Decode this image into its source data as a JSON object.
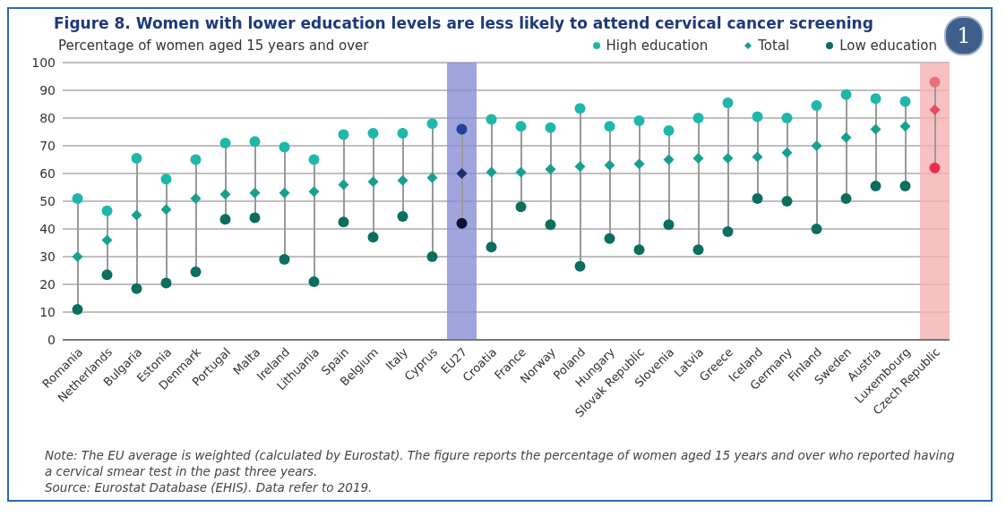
{
  "chart_data": {
    "type": "scatter",
    "title": "Figure 8. Women with lower education levels are less likely to attend cervical cancer screening",
    "ylabel": "Percentage of women aged 15 years and over",
    "categories": [
      "Romania",
      "Netherlands",
      "Bulgaria",
      "Estonia",
      "Denmark",
      "Portugal",
      "Malta",
      "Ireland",
      "Lithuania",
      "Spain",
      "Belgium",
      "Italy",
      "Cyprus",
      "EU27",
      "Croatia",
      "France",
      "Norway",
      "Poland",
      "Hungary",
      "Slovak Republic",
      "Slovenia",
      "Latvia",
      "Greece",
      "Iceland",
      "Germany",
      "Finland",
      "Sweden",
      "Austria",
      "Luxembourg",
      "Czech Republic"
    ],
    "series": [
      {
        "name": "High education",
        "color": "#1db8aa",
        "marker": "circle",
        "values": [
          51,
          46.5,
          65.5,
          58,
          65,
          71,
          71.5,
          69.5,
          65,
          74,
          74.5,
          74.5,
          78,
          76,
          79.5,
          77,
          76.5,
          83.5,
          77,
          79,
          75.5,
          80,
          85.5,
          80.5,
          80,
          84.5,
          88.5,
          87,
          86,
          93
        ],
        "colors": [
          "#1db8aa",
          "#1db8aa",
          "#1db8aa",
          "#1db8aa",
          "#1db8aa",
          "#1db8aa",
          "#1db8aa",
          "#1db8aa",
          "#1db8aa",
          "#1db8aa",
          "#1db8aa",
          "#1db8aa",
          "#1db8aa",
          "#23409a",
          "#1db8aa",
          "#1db8aa",
          "#1db8aa",
          "#1db8aa",
          "#1db8aa",
          "#1db8aa",
          "#1db8aa",
          "#1db8aa",
          "#1db8aa",
          "#1db8aa",
          "#1db8aa",
          "#1db8aa",
          "#1db8aa",
          "#1db8aa",
          "#1db8aa",
          "#e8707a"
        ]
      },
      {
        "name": "Total",
        "color": "#17a08f",
        "marker": "diamond",
        "values": [
          30,
          36,
          45,
          47,
          51,
          52.5,
          53,
          53,
          53.5,
          56,
          57,
          57.5,
          58.5,
          60,
          60.5,
          60.5,
          61.5,
          62.5,
          63,
          63.5,
          65,
          65.5,
          65.5,
          66,
          67.5,
          70,
          73,
          76,
          77,
          83
        ],
        "colors": [
          "#17a08f",
          "#17a08f",
          "#17a08f",
          "#17a08f",
          "#17a08f",
          "#17a08f",
          "#17a08f",
          "#17a08f",
          "#17a08f",
          "#17a08f",
          "#17a08f",
          "#17a08f",
          "#17a08f",
          "#1c2d6e",
          "#17a08f",
          "#17a08f",
          "#17a08f",
          "#17a08f",
          "#17a08f",
          "#17a08f",
          "#17a08f",
          "#17a08f",
          "#17a08f",
          "#17a08f",
          "#17a08f",
          "#17a08f",
          "#17a08f",
          "#17a08f",
          "#17a08f",
          "#e84a5a"
        ]
      },
      {
        "name": "Low education",
        "color": "#0b6e5f",
        "marker": "circle",
        "values": [
          11,
          23.5,
          18.5,
          20.5,
          24.5,
          43.5,
          44,
          29,
          21,
          42.5,
          37,
          44.5,
          30,
          42,
          33.5,
          48,
          41.5,
          26.5,
          36.5,
          32.5,
          41.5,
          32.5,
          39,
          51,
          50,
          40,
          51,
          55.5,
          55.5,
          62
        ],
        "colors": [
          "#0b6e5f",
          "#0b6e5f",
          "#0b6e5f",
          "#0b6e5f",
          "#0b6e5f",
          "#0b6e5f",
          "#0b6e5f",
          "#0b6e5f",
          "#0b6e5f",
          "#0b6e5f",
          "#0b6e5f",
          "#0b6e5f",
          "#0b6e5f",
          "#0d1030",
          "#0b6e5f",
          "#0b6e5f",
          "#0b6e5f",
          "#0b6e5f",
          "#0b6e5f",
          "#0b6e5f",
          "#0b6e5f",
          "#0b6e5f",
          "#0b6e5f",
          "#0b6e5f",
          "#0b6e5f",
          "#0b6e5f",
          "#0b6e5f",
          "#0b6e5f",
          "#0b6e5f",
          "#e8304a"
        ]
      }
    ],
    "ylim": [
      0,
      100
    ],
    "yticks": [
      0,
      10,
      20,
      30,
      40,
      50,
      60,
      70,
      80,
      90,
      100
    ],
    "grid": "y",
    "legend": "top right",
    "bands": [
      {
        "axis": "x",
        "from": "EU27",
        "to": "EU27",
        "color": "#8a8fd6"
      },
      {
        "axis": "x",
        "from": "Czech Republic",
        "to": "Czech Republic",
        "color": "#f6b1b1"
      }
    ],
    "annotations": [
      "Note: The EU average is weighted (calculated by Eurostat). The figure reports the percentage of women aged 15 years and over who reported having a cervical smear test in the past three years.",
      "Source: Eurostat Database (EHIS). Data refer to 2019.",
      "1"
    ]
  }
}
